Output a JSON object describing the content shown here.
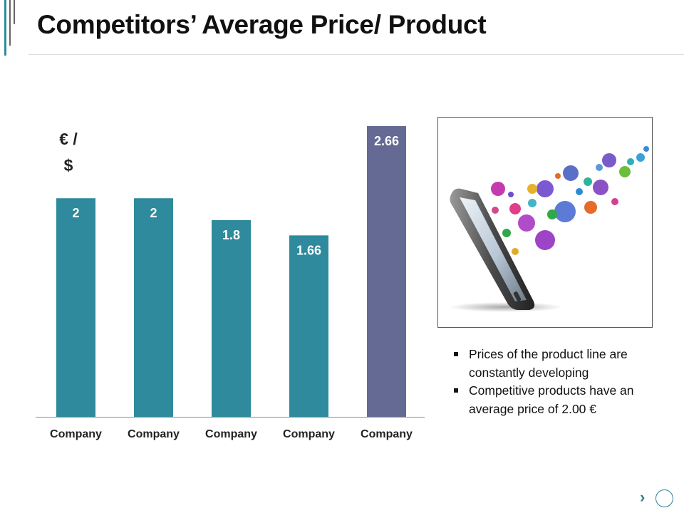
{
  "slide": {
    "title": "Competitors’ Average Price/ Product"
  },
  "chart_data": {
    "type": "bar",
    "ylabel": "€ / $",
    "ylabel_lines": [
      "€ /",
      "$"
    ],
    "categories": [
      "Company",
      "Company",
      "Company",
      "Company",
      "Company"
    ],
    "values": [
      2,
      2,
      1.8,
      1.66,
      2.66
    ],
    "value_labels": [
      "2",
      "2",
      "1.8",
      "1.66",
      "2.66"
    ],
    "ylim": [
      0,
      2.66
    ],
    "grid": false,
    "colors": [
      "#2e8a9c",
      "#2e8a9c",
      "#2e8a9c",
      "#2e8a9c",
      "#646a93"
    ]
  },
  "image": {
    "icon": "tablet-with-app-icons"
  },
  "bullets": [
    "Prices of the product line are constantly developing",
    "Competitive products have an average price of 2.00 €"
  ],
  "nav": {
    "next_glyph": "›"
  }
}
